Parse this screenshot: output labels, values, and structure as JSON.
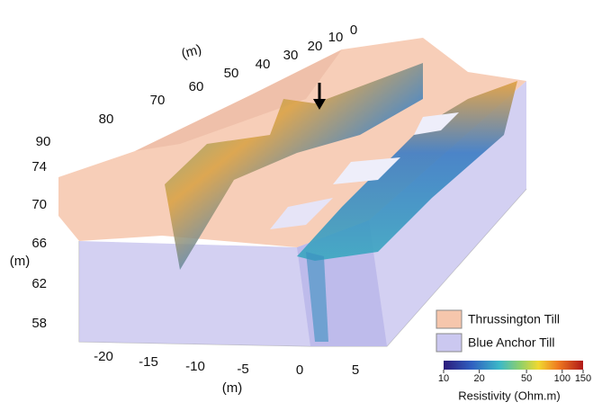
{
  "axes": {
    "x_label": "(m)",
    "x_ticks": [
      -20,
      -15,
      -10,
      -5,
      0,
      5
    ],
    "y_label": "(m)",
    "y_ticks": [
      90,
      80,
      70,
      60,
      50,
      40,
      30,
      20,
      10,
      0
    ],
    "z_label": "(m)",
    "z_ticks": [
      74,
      70,
      66,
      62,
      58
    ]
  },
  "legend": [
    {
      "label": "Thrussington Till",
      "color": "#f6c6ac"
    },
    {
      "label": "Blue Anchor Till",
      "color": "#cbc8f0"
    }
  ],
  "colorbar": {
    "label": "Resistivity (Ohm.m)",
    "ticks": [
      10,
      20,
      50,
      100,
      150
    ],
    "range": [
      10,
      150
    ],
    "scale": "log"
  }
}
